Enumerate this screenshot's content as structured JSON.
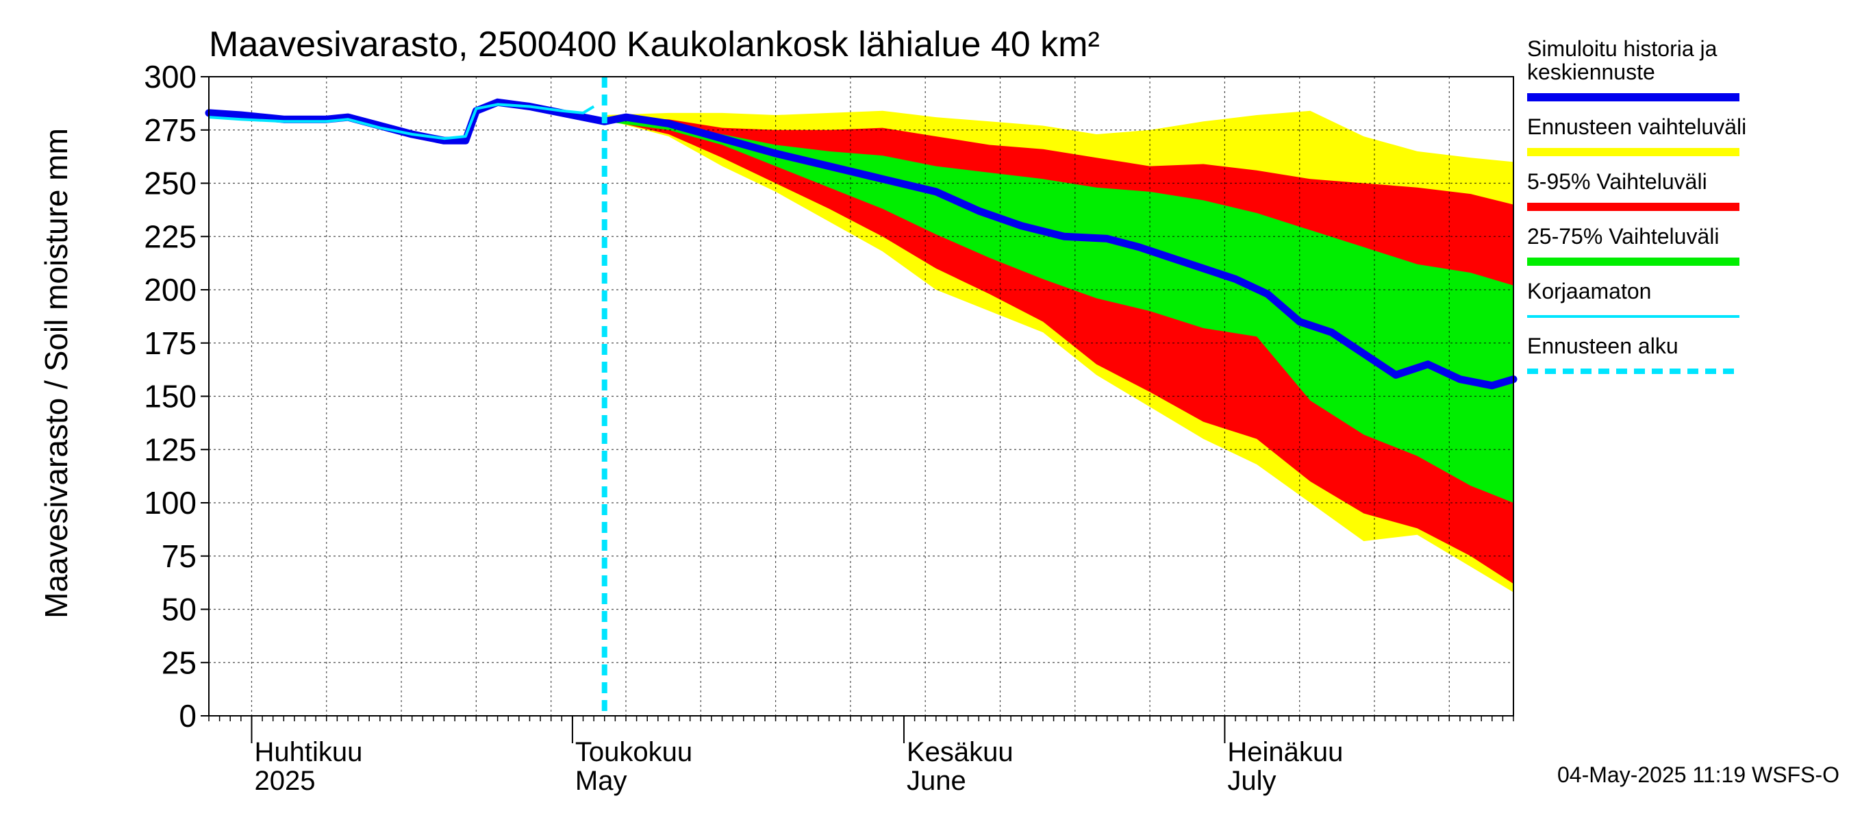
{
  "chart_data": {
    "type": "area",
    "title": "Maavesivarasto, 2500400 Kaukolankosk lähialue 40 km²",
    "ylabel": "Maavesivarasto / Soil moisture   mm",
    "xlabel": "",
    "ylim": [
      0,
      300
    ],
    "yticks": [
      0,
      25,
      50,
      75,
      100,
      125,
      150,
      175,
      200,
      225,
      250,
      275,
      300
    ],
    "xlim": [
      "2025-03-28",
      "2025-07-28"
    ],
    "grid": true,
    "legend_position": "right",
    "forecast_start": "2025-05-04",
    "timestamp": "04-May-2025 11:19 WSFS-O",
    "month_labels": [
      {
        "date": "2025-04-01",
        "fi": "Huhtikuu",
        "en": "2025"
      },
      {
        "date": "2025-05-01",
        "fi": "Toukokuu",
        "en": "May"
      },
      {
        "date": "2025-06-01",
        "fi": "Kesäkuu",
        "en": "June"
      },
      {
        "date": "2025-07-01",
        "fi": "Heinäkuu",
        "en": "July"
      }
    ],
    "legend": [
      {
        "label": "Simuloitu historia ja keskiennuste",
        "color": "#0000ee",
        "style": "thick"
      },
      {
        "label": "Ennusteen vaihteluväli",
        "color": "#ffff00",
        "style": "thick"
      },
      {
        "label": "5-95% Vaihteluväli",
        "color": "#ff0000",
        "style": "thick"
      },
      {
        "label": "25-75% Vaihteluväli",
        "color": "#00ee00",
        "style": "thick"
      },
      {
        "label": "Korjaamaton",
        "color": "#00e5ff",
        "style": "thin"
      },
      {
        "label": "Ennusteen alku",
        "color": "#00e5ff",
        "style": "dashed"
      }
    ],
    "colors": {
      "range": "#ffff00",
      "p5_95": "#ff0000",
      "p25_75": "#00ee00",
      "median": "#0000ee",
      "uncorrected": "#00e5ff",
      "forecast_start": "#00e5ff"
    },
    "series": [
      {
        "name": "Simuloitu historia ja keskiennuste",
        "points": [
          [
            "2025-03-28",
            283
          ],
          [
            "2025-03-31",
            282
          ],
          [
            "2025-04-04",
            280
          ],
          [
            "2025-04-08",
            280
          ],
          [
            "2025-04-10",
            281
          ],
          [
            "2025-04-13",
            277
          ],
          [
            "2025-04-16",
            273
          ],
          [
            "2025-04-19",
            270
          ],
          [
            "2025-04-21",
            270
          ],
          [
            "2025-04-22",
            284
          ],
          [
            "2025-04-24",
            288
          ],
          [
            "2025-04-27",
            286
          ],
          [
            "2025-05-01",
            282
          ],
          [
            "2025-05-04",
            279
          ],
          [
            "2025-05-06",
            281
          ],
          [
            "2025-05-10",
            278
          ],
          [
            "2025-05-15",
            271
          ],
          [
            "2025-05-20",
            264
          ],
          [
            "2025-05-25",
            258
          ],
          [
            "2025-05-30",
            252
          ],
          [
            "2025-06-04",
            246
          ],
          [
            "2025-06-08",
            237
          ],
          [
            "2025-06-12",
            230
          ],
          [
            "2025-06-16",
            225
          ],
          [
            "2025-06-20",
            224
          ],
          [
            "2025-06-23",
            220
          ],
          [
            "2025-06-26",
            215
          ],
          [
            "2025-06-29",
            210
          ],
          [
            "2025-07-02",
            205
          ],
          [
            "2025-07-05",
            198
          ],
          [
            "2025-07-08",
            185
          ],
          [
            "2025-07-11",
            180
          ],
          [
            "2025-07-14",
            170
          ],
          [
            "2025-07-17",
            160
          ],
          [
            "2025-07-20",
            165
          ],
          [
            "2025-07-23",
            158
          ],
          [
            "2025-07-26",
            155
          ],
          [
            "2025-07-28",
            158
          ]
        ]
      },
      {
        "name": "Korjaamaton",
        "points": [
          [
            "2025-03-28",
            281
          ],
          [
            "2025-03-31",
            280
          ],
          [
            "2025-04-04",
            279
          ],
          [
            "2025-04-08",
            279
          ],
          [
            "2025-04-10",
            280
          ],
          [
            "2025-04-13",
            276
          ],
          [
            "2025-04-16",
            273
          ],
          [
            "2025-04-19",
            271
          ],
          [
            "2025-04-21",
            272
          ],
          [
            "2025-04-22",
            285
          ],
          [
            "2025-04-24",
            287
          ],
          [
            "2025-04-27",
            286
          ],
          [
            "2025-04-30",
            284
          ],
          [
            "2025-05-02",
            283
          ],
          [
            "2025-05-03",
            286
          ]
        ]
      }
    ],
    "bands": [
      {
        "name": "Ennusteen vaihteluväli",
        "x": [
          "2025-05-04",
          "2025-05-10",
          "2025-05-15",
          "2025-05-20",
          "2025-05-25",
          "2025-05-30",
          "2025-06-04",
          "2025-06-09",
          "2025-06-14",
          "2025-06-19",
          "2025-06-24",
          "2025-06-29",
          "2025-07-04",
          "2025-07-09",
          "2025-07-14",
          "2025-07-19",
          "2025-07-24",
          "2025-07-28"
        ],
        "lower": [
          280,
          272,
          258,
          246,
          232,
          218,
          200,
          190,
          180,
          160,
          145,
          130,
          118,
          100,
          82,
          85,
          70,
          58
        ],
        "upper": [
          282,
          283,
          283,
          282,
          283,
          284,
          281,
          279,
          277,
          273,
          275,
          279,
          282,
          284,
          272,
          265,
          262,
          260
        ]
      },
      {
        "name": "5-95% Vaihteluväli",
        "x": [
          "2025-05-04",
          "2025-05-10",
          "2025-05-15",
          "2025-05-20",
          "2025-05-25",
          "2025-05-30",
          "2025-06-04",
          "2025-06-09",
          "2025-06-14",
          "2025-06-19",
          "2025-06-24",
          "2025-06-29",
          "2025-07-04",
          "2025-07-09",
          "2025-07-14",
          "2025-07-19",
          "2025-07-24",
          "2025-07-28"
        ],
        "lower": [
          280,
          273,
          262,
          250,
          238,
          225,
          210,
          198,
          185,
          165,
          152,
          138,
          130,
          110,
          95,
          88,
          75,
          62
        ],
        "upper": [
          281,
          280,
          276,
          275,
          275,
          276,
          272,
          268,
          266,
          262,
          258,
          259,
          256,
          252,
          250,
          248,
          245,
          240
        ]
      },
      {
        "name": "25-75% Vaihteluväli",
        "x": [
          "2025-05-04",
          "2025-05-10",
          "2025-05-15",
          "2025-05-20",
          "2025-05-25",
          "2025-05-30",
          "2025-06-04",
          "2025-06-09",
          "2025-06-14",
          "2025-06-19",
          "2025-06-24",
          "2025-06-29",
          "2025-07-04",
          "2025-07-09",
          "2025-07-14",
          "2025-07-19",
          "2025-07-24",
          "2025-07-28"
        ],
        "lower": [
          279,
          275,
          268,
          258,
          248,
          238,
          226,
          215,
          205,
          196,
          190,
          182,
          178,
          148,
          132,
          122,
          108,
          100
        ],
        "upper": [
          280,
          278,
          273,
          268,
          265,
          263,
          258,
          255,
          252,
          248,
          246,
          242,
          236,
          228,
          220,
          212,
          208,
          202
        ]
      }
    ]
  }
}
